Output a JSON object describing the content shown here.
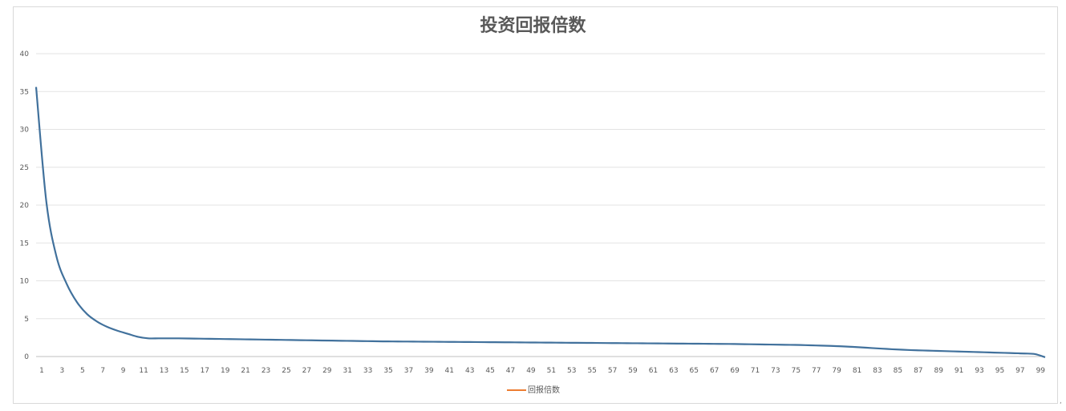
{
  "chart_data": {
    "type": "line",
    "title": "投资回报倍数",
    "xlabel": "",
    "ylabel": "",
    "ylim": [
      0,
      40
    ],
    "y_ticks": [
      0,
      5,
      10,
      15,
      20,
      25,
      30,
      35,
      40
    ],
    "x_tick_labels": [
      "1",
      "3",
      "5",
      "7",
      "9",
      "11",
      "13",
      "15",
      "17",
      "19",
      "21",
      "23",
      "25",
      "27",
      "29",
      "31",
      "33",
      "35",
      "37",
      "39",
      "41",
      "43",
      "45",
      "47",
      "49",
      "51",
      "53",
      "55",
      "57",
      "59",
      "61",
      "63",
      "65",
      "67",
      "69",
      "71",
      "73",
      "75",
      "77",
      "79",
      "81",
      "83",
      "85",
      "87",
      "89",
      "91",
      "93",
      "95",
      "97",
      "99"
    ],
    "x": [
      1,
      2,
      3,
      4,
      5,
      6,
      7,
      8,
      9,
      10,
      11,
      12,
      13,
      14,
      15,
      16,
      17,
      18,
      19,
      20,
      21,
      22,
      23,
      24,
      25,
      26,
      27,
      28,
      29,
      30,
      31,
      32,
      33,
      34,
      35,
      36,
      37,
      38,
      39,
      40,
      41,
      42,
      43,
      44,
      45,
      46,
      47,
      48,
      49,
      50,
      51,
      52,
      53,
      54,
      55,
      56,
      57,
      58,
      59,
      60,
      61,
      62,
      63,
      64,
      65,
      66,
      67,
      68,
      69,
      70,
      71,
      72,
      73,
      74,
      75,
      76,
      77,
      78,
      79,
      80,
      81,
      82,
      83,
      84,
      85,
      86,
      87,
      88,
      89,
      90,
      91,
      92,
      93,
      94,
      95,
      96,
      97,
      98,
      99,
      100
    ],
    "legend": {
      "position": "bottom",
      "color": "#ED7D31"
    },
    "grid": true,
    "series": [
      {
        "name": "回报倍数",
        "color": "#41719C",
        "values": [
          35.6,
          20.5,
          13.2,
          9.6,
          7.2,
          5.6,
          4.6,
          3.9,
          3.4,
          3.0,
          2.6,
          2.4,
          2.4,
          2.4,
          2.4,
          2.38,
          2.36,
          2.34,
          2.32,
          2.3,
          2.28,
          2.26,
          2.24,
          2.22,
          2.2,
          2.18,
          2.16,
          2.14,
          2.12,
          2.1,
          2.08,
          2.06,
          2.04,
          2.02,
          2.0,
          1.99,
          1.98,
          1.97,
          1.96,
          1.95,
          1.94,
          1.93,
          1.92,
          1.91,
          1.9,
          1.89,
          1.88,
          1.87,
          1.86,
          1.85,
          1.84,
          1.83,
          1.82,
          1.81,
          1.8,
          1.79,
          1.78,
          1.77,
          1.76,
          1.75,
          1.74,
          1.73,
          1.72,
          1.71,
          1.7,
          1.69,
          1.68,
          1.67,
          1.66,
          1.64,
          1.62,
          1.6,
          1.58,
          1.56,
          1.54,
          1.52,
          1.48,
          1.44,
          1.4,
          1.35,
          1.28,
          1.2,
          1.12,
          1.04,
          0.96,
          0.9,
          0.84,
          0.8,
          0.76,
          0.72,
          0.68,
          0.64,
          0.6,
          0.56,
          0.52,
          0.48,
          0.44,
          0.4,
          0.32,
          -0.1
        ]
      }
    ]
  }
}
